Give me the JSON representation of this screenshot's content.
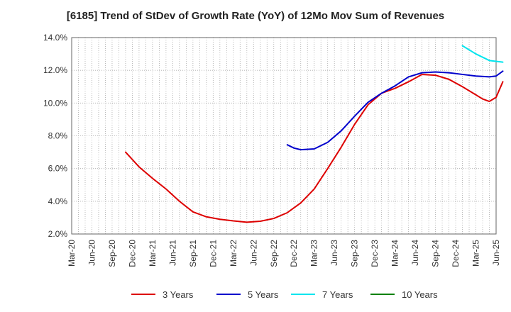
{
  "chart_data": {
    "type": "line",
    "title": "[6185]  Trend of StDev of Growth Rate (YoY) of 12Mo Mov Sum of Revenues",
    "xlabel": "",
    "ylabel": "",
    "x_ticks": [
      "Mar-20",
      "Jun-20",
      "Sep-20",
      "Dec-20",
      "Mar-21",
      "Jun-21",
      "Sep-21",
      "Dec-21",
      "Mar-22",
      "Jun-22",
      "Sep-22",
      "Dec-22",
      "Mar-23",
      "Jun-23",
      "Sep-23",
      "Dec-23",
      "Mar-24",
      "Jun-24",
      "Sep-24",
      "Dec-24",
      "Mar-25",
      "Jun-25"
    ],
    "y_ticks": [
      "2.0%",
      "4.0%",
      "6.0%",
      "8.0%",
      "10.0%",
      "12.0%",
      "14.0%"
    ],
    "ylim": [
      2.0,
      14.0
    ],
    "grid": true,
    "legend_position": "bottom",
    "series": [
      {
        "name": "3 Years",
        "color": "#dd0000",
        "points": [
          [
            "Nov-20",
            7.0
          ],
          [
            "Jan-21",
            6.1
          ],
          [
            "Mar-21",
            5.4
          ],
          [
            "May-21",
            4.75
          ],
          [
            "Jul-21",
            4.0
          ],
          [
            "Sep-21",
            3.35
          ],
          [
            "Nov-21",
            3.05
          ],
          [
            "Jan-22",
            2.9
          ],
          [
            "Mar-22",
            2.8
          ],
          [
            "May-22",
            2.72
          ],
          [
            "Jul-22",
            2.78
          ],
          [
            "Sep-22",
            2.95
          ],
          [
            "Nov-22",
            3.3
          ],
          [
            "Jan-23",
            3.9
          ],
          [
            "Mar-23",
            4.75
          ],
          [
            "May-23",
            6.0
          ],
          [
            "Jul-23",
            7.3
          ],
          [
            "Sep-23",
            8.7
          ],
          [
            "Nov-23",
            9.9
          ],
          [
            "Jan-24",
            10.6
          ],
          [
            "Mar-24",
            10.9
          ],
          [
            "May-24",
            11.3
          ],
          [
            "Jul-24",
            11.75
          ],
          [
            "Sep-24",
            11.7
          ],
          [
            "Nov-24",
            11.45
          ],
          [
            "Jan-25",
            11.0
          ],
          [
            "Mar-25",
            10.5
          ],
          [
            "Apr-25",
            10.25
          ],
          [
            "May-25",
            10.1
          ],
          [
            "Jun-25",
            10.35
          ],
          [
            "Jul-25",
            11.3
          ]
        ]
      },
      {
        "name": "5 Years",
        "color": "#0000cc",
        "points": [
          [
            "Nov-22",
            7.45
          ],
          [
            "Dec-22",
            7.25
          ],
          [
            "Jan-23",
            7.15
          ],
          [
            "Mar-23",
            7.2
          ],
          [
            "May-23",
            7.6
          ],
          [
            "Jul-23",
            8.3
          ],
          [
            "Sep-23",
            9.2
          ],
          [
            "Nov-23",
            10.05
          ],
          [
            "Jan-24",
            10.6
          ],
          [
            "Mar-24",
            11.05
          ],
          [
            "May-24",
            11.6
          ],
          [
            "Jul-24",
            11.85
          ],
          [
            "Sep-24",
            11.9
          ],
          [
            "Nov-24",
            11.85
          ],
          [
            "Jan-25",
            11.75
          ],
          [
            "Mar-25",
            11.65
          ],
          [
            "May-25",
            11.6
          ],
          [
            "Jun-25",
            11.65
          ],
          [
            "Jul-25",
            11.95
          ]
        ]
      },
      {
        "name": "7 Years",
        "color": "#00e5ee",
        "points": [
          [
            "Jan-25",
            13.5
          ],
          [
            "Mar-25",
            13.0
          ],
          [
            "May-25",
            12.6
          ],
          [
            "Jul-25",
            12.5
          ]
        ]
      },
      {
        "name": "10 Years",
        "color": "#008000",
        "points": []
      }
    ]
  }
}
